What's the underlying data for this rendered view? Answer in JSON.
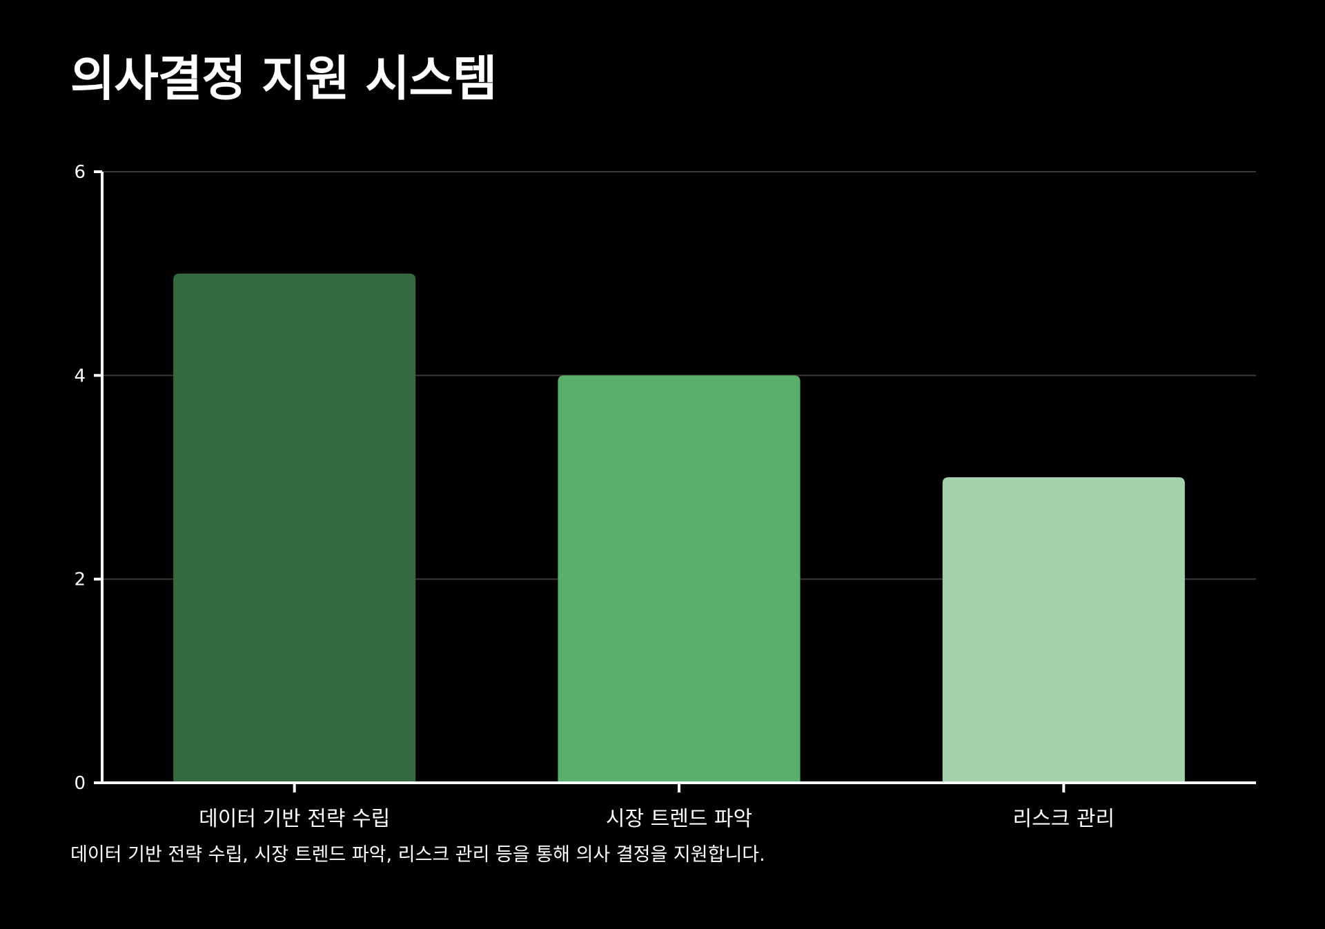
{
  "title": "의사결정 지원 시스템",
  "caption": "데이터 기반 전략 수립, 시장 트렌드 파악, 리스크 관리 등을 통해 의사 결정을 지원합니다.",
  "colors": {
    "background": "#000000",
    "axis": "#ffffff",
    "grid": "#3a3a3a",
    "text": "#ffffff"
  },
  "chart_data": {
    "type": "bar",
    "categories": [
      "데이터 기반 전략 수립",
      "시장 트렌드 파악",
      "리스크 관리"
    ],
    "values": [
      5,
      4,
      3
    ],
    "bar_colors": [
      "#346a3f",
      "#5aae6b",
      "#a3d1ac"
    ],
    "ylim": [
      0,
      6
    ],
    "yticks": [
      0,
      2,
      4,
      6
    ],
    "ytick_labels": [
      "0",
      "2",
      "4",
      "6"
    ],
    "xlabel": "",
    "ylabel": "",
    "grid": true,
    "legend": "none"
  }
}
